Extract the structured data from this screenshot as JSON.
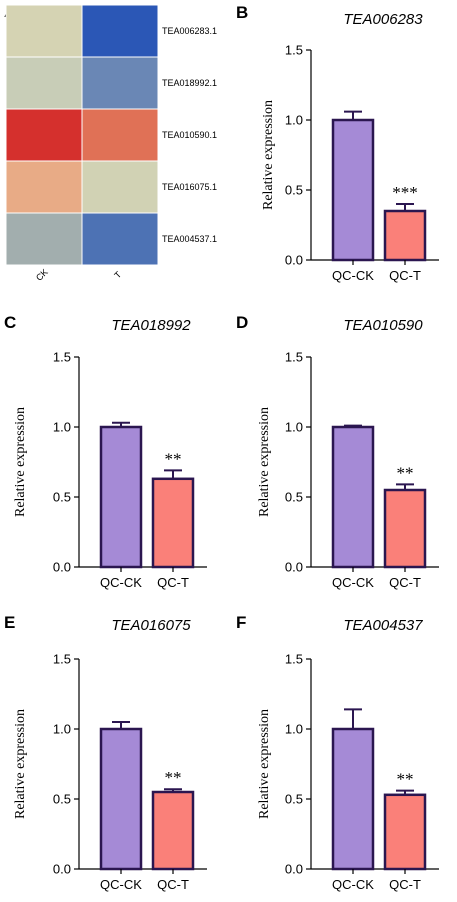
{
  "panels": [
    {
      "letter": "A"
    },
    {
      "letter": "B"
    },
    {
      "letter": "C"
    },
    {
      "letter": "D"
    },
    {
      "letter": "E"
    },
    {
      "letter": "F"
    }
  ],
  "heatmap": {
    "rows": [
      "TEA006283.1",
      "TEA018992.1",
      "TEA010590.1",
      "TEA016075.1",
      "TEA004537.1"
    ],
    "columns": [
      "CK",
      "T"
    ],
    "cell_colors": [
      [
        "#d5d3b3",
        "#2b57b6"
      ],
      [
        "#c8cdb7",
        "#6a87b5"
      ],
      [
        "#d5302d",
        "#e07156"
      ],
      [
        "#e8ab86",
        "#d1d2b4"
      ],
      [
        "#a2aeae",
        "#4d72b4"
      ]
    ]
  },
  "colors": {
    "ck": "#a58ad6",
    "t": "#fa8079",
    "outline": "#2b1650"
  },
  "chart_data": [
    {
      "panel": "B",
      "type": "bar",
      "title": "TEA006283",
      "ylabel": "Relative expression",
      "xlabel": "",
      "categories": [
        "QC-CK",
        "QC-T"
      ],
      "values": [
        1.0,
        0.35
      ],
      "errors": [
        0.06,
        0.05
      ],
      "significance": [
        "",
        "***"
      ],
      "ylim": [
        0,
        1.5
      ],
      "yticks": [
        "0.0",
        "0.5",
        "1.0",
        "1.5"
      ],
      "grid": false
    },
    {
      "panel": "C",
      "type": "bar",
      "title": "TEA018992",
      "ylabel": "Relative expression",
      "xlabel": "",
      "categories": [
        "QC-CK",
        "QC-T"
      ],
      "values": [
        1.0,
        0.63
      ],
      "errors": [
        0.03,
        0.06
      ],
      "significance": [
        "",
        "**"
      ],
      "ylim": [
        0,
        1.5
      ],
      "yticks": [
        "0.0",
        "0.5",
        "1.0",
        "1.5"
      ],
      "grid": false
    },
    {
      "panel": "D",
      "type": "bar",
      "title": "TEA010590",
      "ylabel": "Relative expression",
      "xlabel": "",
      "categories": [
        "QC-CK",
        "QC-T"
      ],
      "values": [
        1.0,
        0.55
      ],
      "errors": [
        0.01,
        0.04
      ],
      "significance": [
        "",
        "**"
      ],
      "ylim": [
        0,
        1.5
      ],
      "yticks": [
        "0.0",
        "0.5",
        "1.0",
        "1.5"
      ],
      "grid": false
    },
    {
      "panel": "E",
      "type": "bar",
      "title": "TEA016075",
      "ylabel": "Relative expression",
      "xlabel": "",
      "categories": [
        "QC-CK",
        "QC-T"
      ],
      "values": [
        1.0,
        0.55
      ],
      "errors": [
        0.05,
        0.02
      ],
      "significance": [
        "",
        "**"
      ],
      "ylim": [
        0,
        1.5
      ],
      "yticks": [
        "0.0",
        "0.5",
        "1.0",
        "1.5"
      ],
      "grid": false
    },
    {
      "panel": "F",
      "type": "bar",
      "title": "TEA004537",
      "ylabel": "Relative expression",
      "xlabel": "",
      "categories": [
        "QC-CK",
        "QC-T"
      ],
      "values": [
        1.0,
        0.53
      ],
      "errors": [
        0.14,
        0.03
      ],
      "significance": [
        "",
        "**"
      ],
      "ylim": [
        0,
        1.5
      ],
      "yticks": [
        "0.0",
        "0.5",
        "1.0",
        "1.5"
      ],
      "grid": false
    }
  ]
}
